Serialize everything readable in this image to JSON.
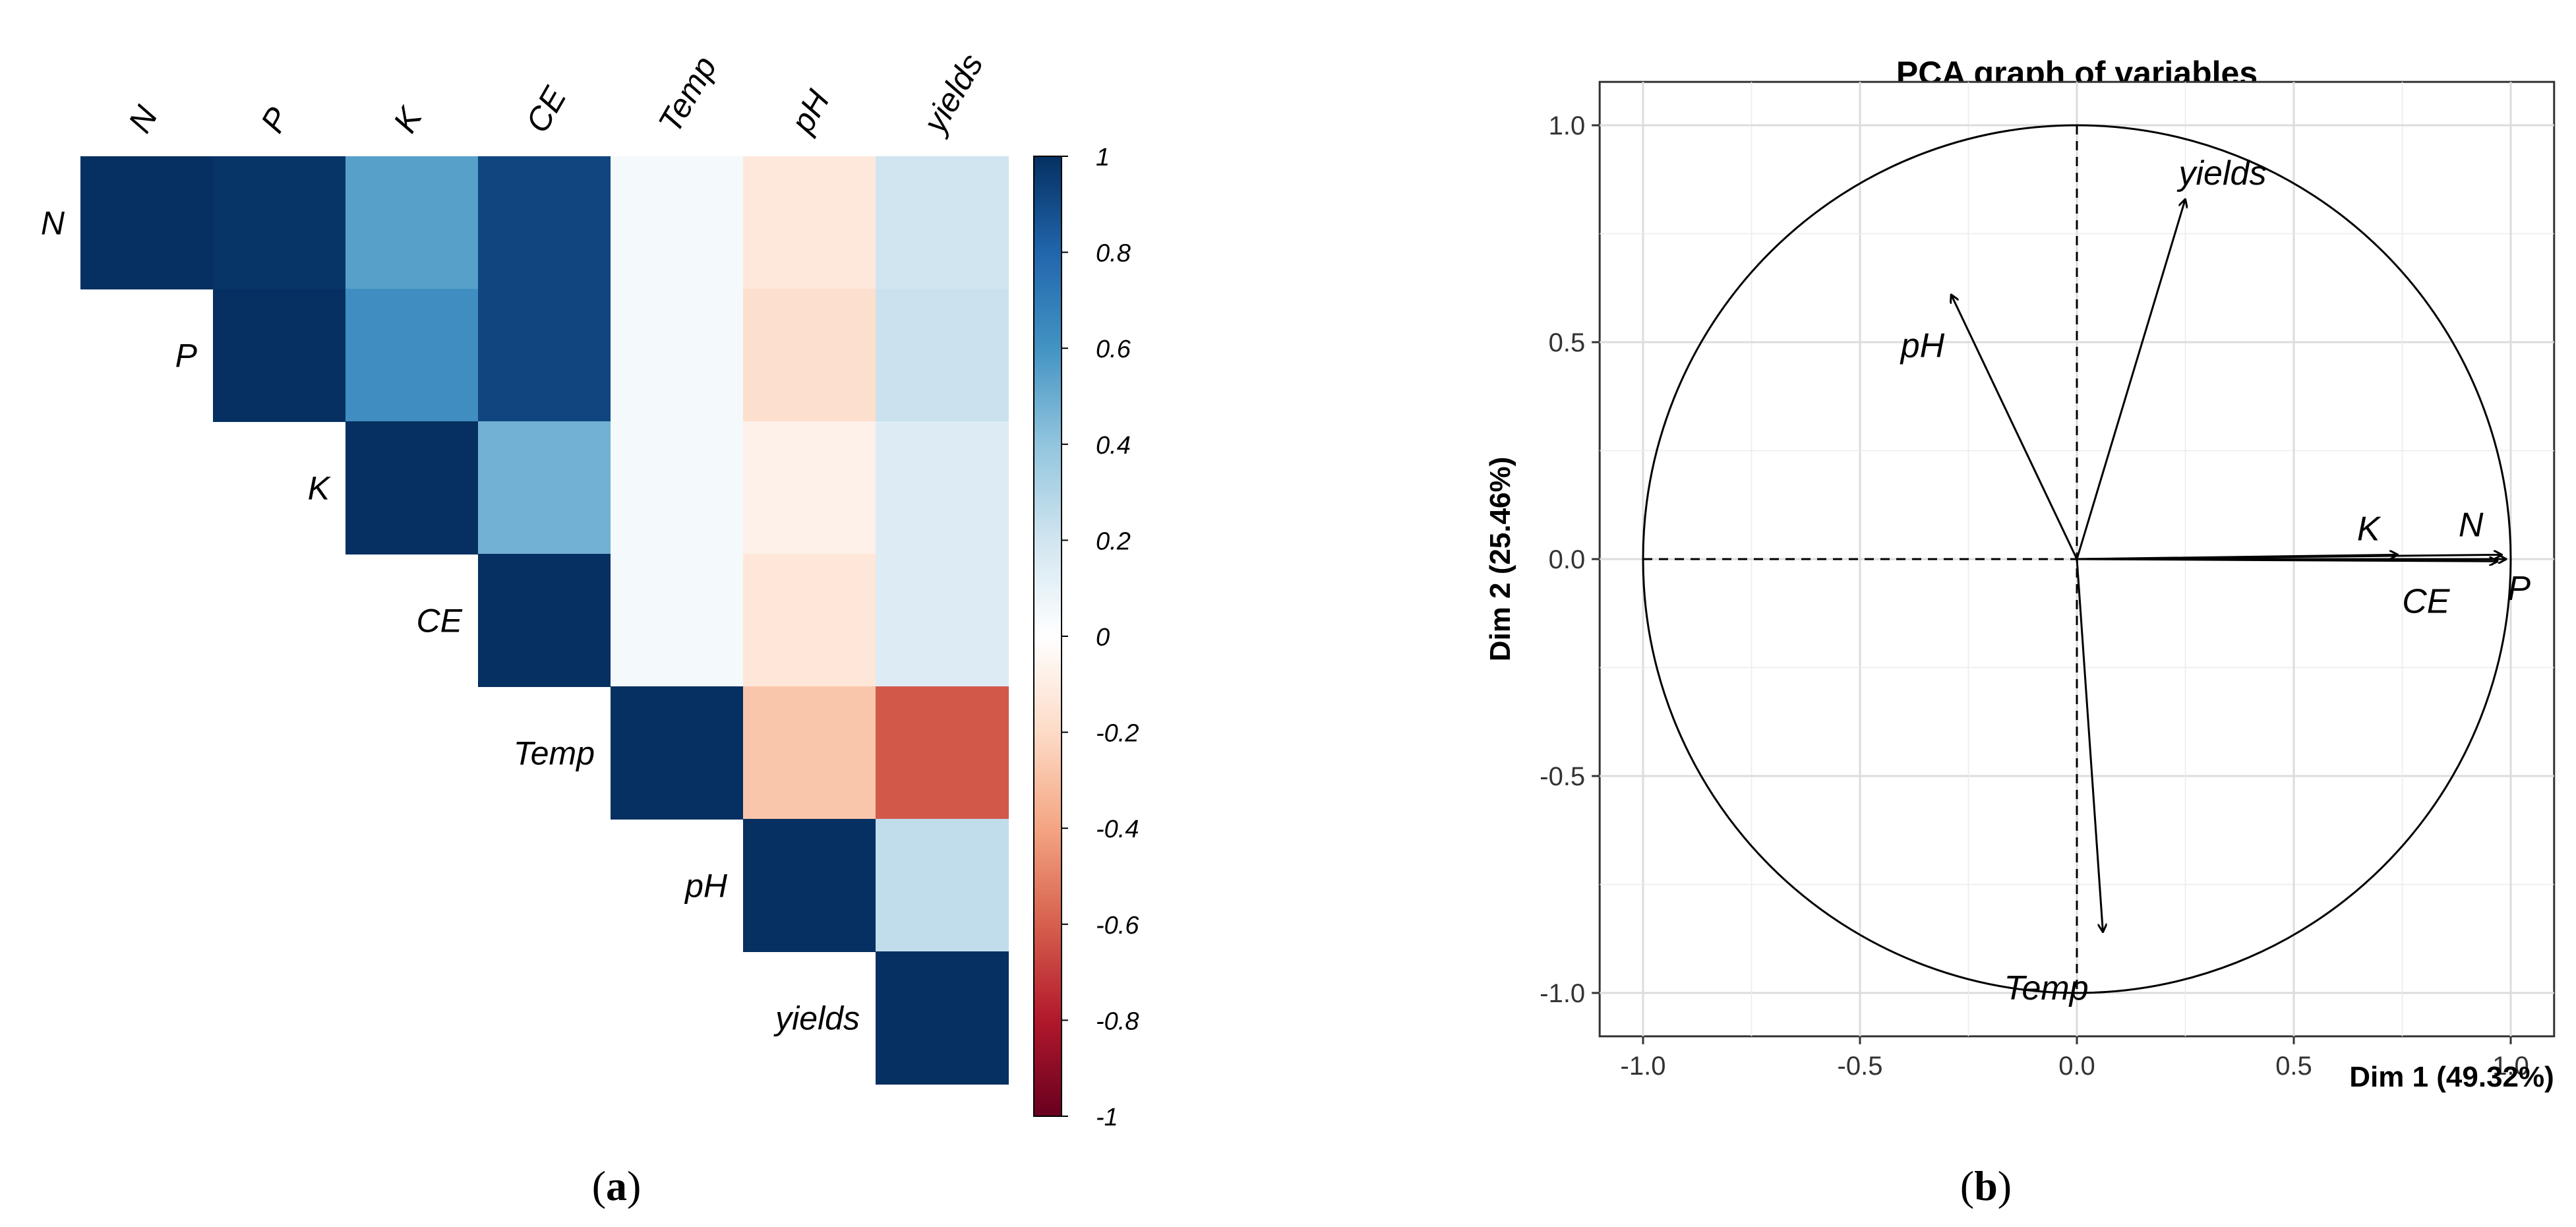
{
  "chart_data": [
    {
      "type": "heatmap",
      "subtype": "upper-triangular correlation matrix",
      "variables": [
        "N",
        "P",
        "K",
        "CE",
        "Temp",
        "pH",
        "yields"
      ],
      "matrix": [
        [
          1.0,
          0.98,
          0.55,
          0.92,
          0.05,
          -0.13,
          0.2
        ],
        [
          null,
          1.0,
          0.62,
          0.92,
          0.05,
          -0.18,
          0.22
        ],
        [
          null,
          null,
          1.0,
          0.48,
          0.05,
          -0.08,
          0.15
        ],
        [
          null,
          null,
          null,
          1.0,
          0.05,
          -0.14,
          0.15
        ],
        [
          null,
          null,
          null,
          null,
          1.0,
          -0.28,
          -0.62
        ],
        [
          null,
          null,
          null,
          null,
          null,
          1.0,
          0.25
        ],
        [
          null,
          null,
          null,
          null,
          null,
          null,
          1.0
        ]
      ],
      "colorbar": {
        "range": [
          -1,
          1
        ],
        "ticks": [
          "1",
          "0.8",
          "0.6",
          "0.4",
          "0.2",
          "0",
          "-0.2",
          "-0.4",
          "-0.6",
          "-0.8",
          "-1"
        ],
        "colors": [
          "#67001f",
          "#b2182b",
          "#d6604d",
          "#f4a582",
          "#fddbc7",
          "#ffffff",
          "#d1e5f0",
          "#92c5de",
          "#4393c3",
          "#2166ac",
          "#053061"
        ]
      },
      "panel_label": "a"
    },
    {
      "type": "scatter",
      "subtype": "PCA variable correlation circle",
      "title": "PCA graph of variables",
      "xlabel": "Dim 1 (49.32%)",
      "ylabel": "Dim 2 (25.46%)",
      "xlim": [
        -1.1,
        1.1
      ],
      "ylim": [
        -1.1,
        1.1
      ],
      "xticks": [
        "-1.0",
        "-0.5",
        "0.0",
        "0.5",
        "1.0"
      ],
      "yticks": [
        "-1.0",
        "-0.5",
        "0.0",
        "0.5",
        "1.0"
      ],
      "vectors": [
        {
          "name": "yields",
          "x": 0.25,
          "y": 0.83
        },
        {
          "name": "pH",
          "x": -0.29,
          "y": 0.61
        },
        {
          "name": "K",
          "x": 0.74,
          "y": 0.01
        },
        {
          "name": "N",
          "x": 0.98,
          "y": 0.01
        },
        {
          "name": "CE",
          "x": 0.97,
          "y": -0.005
        },
        {
          "name": "P",
          "x": 0.99,
          "y": 0.0
        },
        {
          "name": "Temp",
          "x": 0.06,
          "y": -0.86
        }
      ],
      "grid": true,
      "panel_label": "b"
    }
  ],
  "captions": {
    "a_open": "(",
    "a": "a",
    "a_close": ")",
    "b_open": "(",
    "b": "b",
    "b_close": ")"
  }
}
